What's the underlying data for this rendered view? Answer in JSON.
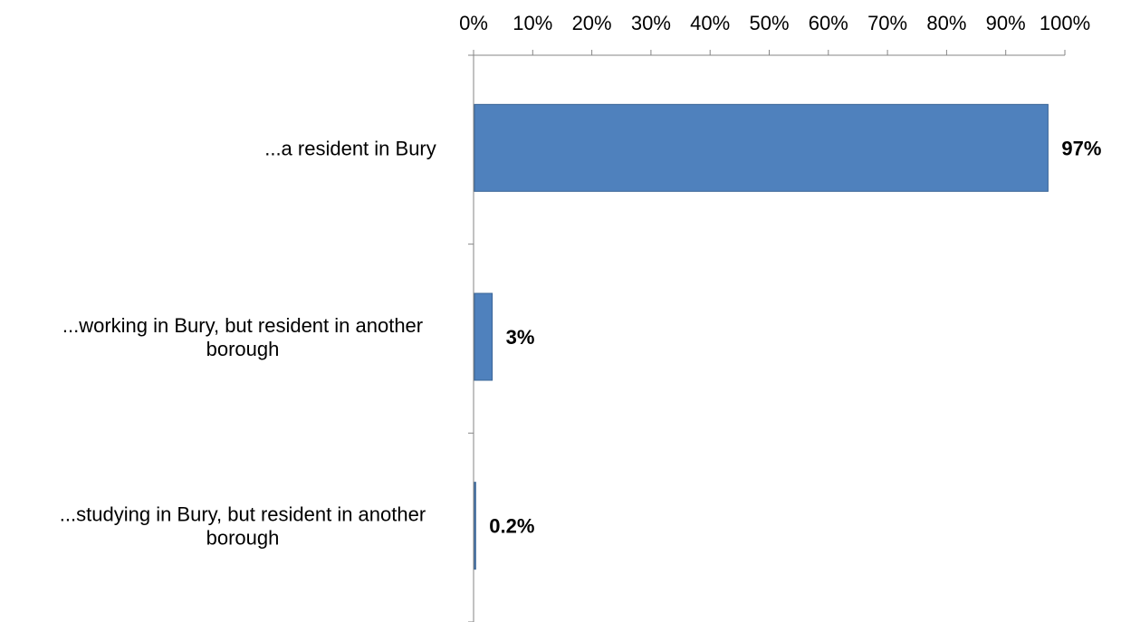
{
  "chart_data": {
    "type": "bar",
    "orientation": "horizontal",
    "categories": [
      "...a resident in Bury",
      "...working in Bury, but resident in another borough",
      "...studying in Bury, but resident in another borough"
    ],
    "category_lines": [
      [
        "...a resident in Bury"
      ],
      [
        "...working in Bury, but resident in another",
        "borough"
      ],
      [
        "...studying in Bury, but resident in another",
        "borough"
      ]
    ],
    "values": [
      97,
      3,
      0.2
    ],
    "data_labels": [
      "97%",
      "3%",
      "0.2%"
    ],
    "xlim": [
      0,
      100
    ],
    "x_ticks": [
      0,
      10,
      20,
      30,
      40,
      50,
      60,
      70,
      80,
      90,
      100
    ],
    "x_tick_labels": [
      "0%",
      "10%",
      "20%",
      "30%",
      "40%",
      "50%",
      "60%",
      "70%",
      "80%",
      "90%",
      "100%"
    ],
    "x_axis_position": "top",
    "grid": false,
    "legend": "none",
    "bar_color": "#4f81bd"
  }
}
